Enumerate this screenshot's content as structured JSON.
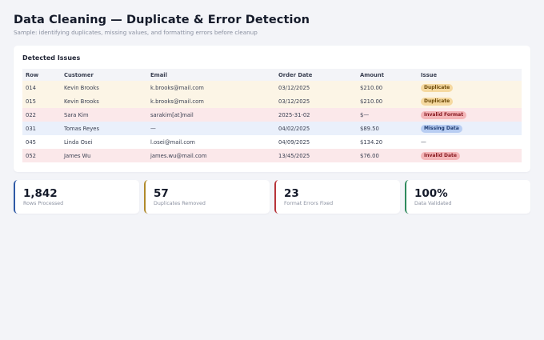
{
  "header": {
    "title": "Data Cleaning — Duplicate & Error Detection",
    "subtitle": "Sample: identifying duplicates, missing values, and formatting errors before cleanup"
  },
  "issues": {
    "title": "Detected Issues",
    "columns": [
      "Row",
      "Customer",
      "Email",
      "Order Date",
      "Amount",
      "Issue"
    ],
    "rows": [
      {
        "row": "014",
        "customer": "Kevin Brooks",
        "email": "k.brooks@mail.com",
        "date": "03/12/2025",
        "amount": "$210.00",
        "issue": "Duplicate",
        "type": "dup"
      },
      {
        "row": "015",
        "customer": "Kevin Brooks",
        "email": "k.brooks@mail.com",
        "date": "03/12/2025",
        "amount": "$210.00",
        "issue": "Duplicate",
        "type": "dup"
      },
      {
        "row": "022",
        "customer": "Sara Kim",
        "email": "sarakim[at]mail",
        "date": "2025-31-02",
        "amount": "$—",
        "issue": "Invalid Format",
        "type": "fmt"
      },
      {
        "row": "031",
        "customer": "Tomas Reyes",
        "email": "—",
        "date": "04/02/2025",
        "amount": "$89.50",
        "issue": "Missing Data",
        "type": "miss"
      },
      {
        "row": "045",
        "customer": "Linda Osei",
        "email": "l.osei@mail.com",
        "date": "04/09/2025",
        "amount": "$134.20",
        "issue": "—",
        "type": "ok"
      },
      {
        "row": "052",
        "customer": "James Wu",
        "email": "james.wu@mail.com",
        "date": "13/45/2025",
        "amount": "$76.00",
        "issue": "Invalid Date",
        "type": "fmt"
      }
    ]
  },
  "stats": [
    {
      "value": "1,842",
      "label": "Rows Processed",
      "color": "#2f5aa6"
    },
    {
      "value": "57",
      "label": "Duplicates Removed",
      "color": "#b08a2a"
    },
    {
      "value": "23",
      "label": "Format Errors Fixed",
      "color": "#b8343a"
    },
    {
      "value": "100%",
      "label": "Data Validated",
      "color": "#2e8a5c"
    }
  ]
}
